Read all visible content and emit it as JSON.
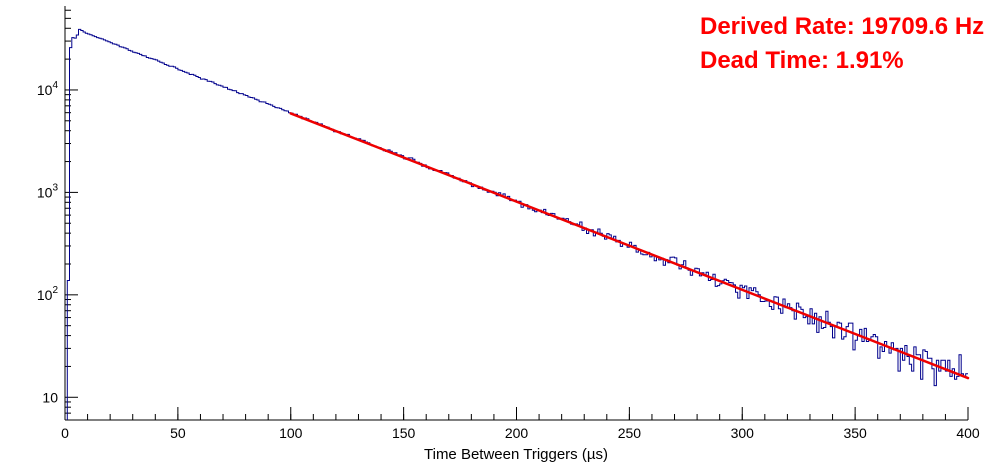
{
  "chart": {
    "background": "#ffffff",
    "axis_color": "#000000",
    "text_color": "#000000"
  },
  "annotations": {
    "derived_rate": "Derived Rate: 19709.6 Hz",
    "dead_time": "Dead Time: 1.91%",
    "color": "#ff0000"
  },
  "chart_data": {
    "type": "histogram",
    "title": "",
    "xlabel": "Time Between Triggers (µs)",
    "ylabel": "",
    "x_scale": "linear",
    "y_scale": "log",
    "xlim": [
      0,
      400
    ],
    "ylim": [
      6,
      66000
    ],
    "x_ticks": [
      0,
      50,
      100,
      150,
      200,
      250,
      300,
      350,
      400
    ],
    "x_minor_step": 10,
    "y_ticks": [
      {
        "value": 10,
        "mantissa": "10",
        "exponent": ""
      },
      {
        "value": 100,
        "mantissa": "10",
        "exponent": "2"
      },
      {
        "value": 1000,
        "mantissa": "10",
        "exponent": "3"
      },
      {
        "value": 10000,
        "mantissa": "10",
        "exponent": "4"
      }
    ],
    "grid": false,
    "legend": "none",
    "hist_color": "#00008c",
    "fit_color": "#ee0000",
    "bin_width": 1,
    "hist_range": [
      1,
      400
    ],
    "noise_seed": 20210613,
    "anchors": [
      [
        1,
        1
      ],
      [
        2,
        21000
      ],
      [
        3,
        31500
      ],
      [
        4,
        33000
      ],
      [
        5,
        30500
      ],
      [
        6,
        39500
      ],
      [
        8,
        37500
      ],
      [
        10,
        35300
      ],
      [
        15,
        32200
      ],
      [
        20,
        29100
      ],
      [
        30,
        23800
      ],
      [
        40,
        19600
      ],
      [
        50,
        16000
      ],
      [
        60,
        13100
      ],
      [
        70,
        10800
      ],
      [
        80,
        8850
      ],
      [
        90,
        7250
      ],
      [
        100,
        5950
      ],
      [
        120,
        4000
      ],
      [
        140,
        2700
      ],
      [
        160,
        1810
      ],
      [
        180,
        1220
      ],
      [
        200,
        820
      ],
      [
        220,
        550
      ],
      [
        240,
        370
      ],
      [
        260,
        250
      ],
      [
        280,
        167
      ],
      [
        300,
        112
      ],
      [
        320,
        75
      ],
      [
        340,
        51
      ],
      [
        360,
        34
      ],
      [
        380,
        23
      ],
      [
        400,
        15.5
      ]
    ],
    "fit": {
      "x_start": 100,
      "y_start": 5900,
      "x_end": 400,
      "y_end": 15.4
    },
    "derived_rate_hz": 19709.6,
    "dead_time_percent": 1.91
  }
}
